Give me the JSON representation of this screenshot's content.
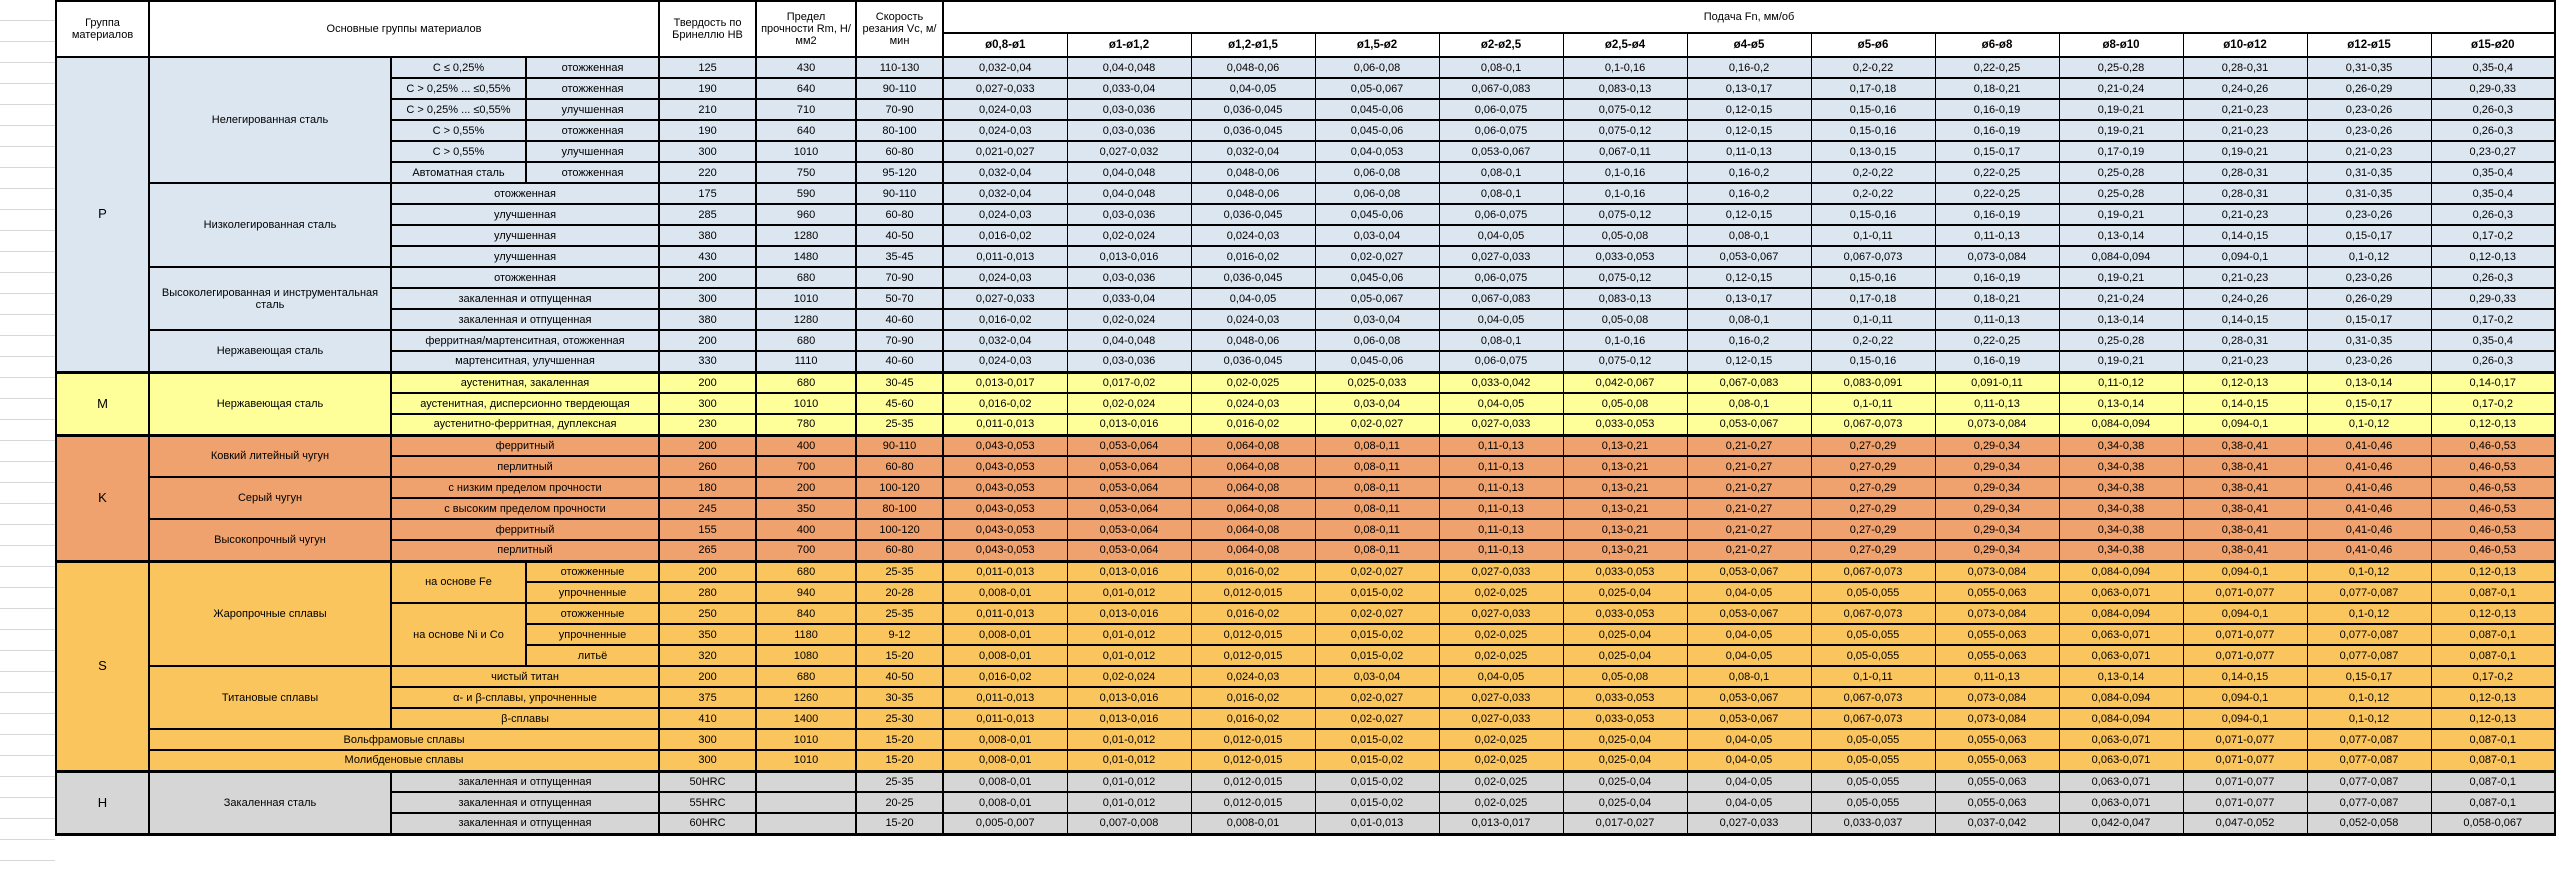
{
  "header": {
    "col_group": "Группа материалов",
    "col_main": "Основные группы материалов",
    "col_hardness": "Твердость по Бринеллю HB",
    "col_strength": "Предел прочности Rm, Н/мм2",
    "col_speed": "Скорость резания Vc, м/мин",
    "col_feed": "Подача Fn, мм/об",
    "diameters": [
      "ø0,8-ø1",
      "ø1-ø1,2",
      "ø1,2-ø1,5",
      "ø1,5-ø2",
      "ø2-ø2,5",
      "ø2,5-ø4",
      "ø4-ø5",
      "ø5-ø6",
      "ø6-ø8",
      "ø8-ø10",
      "ø10-ø12",
      "ø12-ø15",
      "ø15-ø20"
    ]
  },
  "colors": {
    "group_P": "#DCE6F1",
    "group_M": "#FFFF99",
    "group_K": "#F0A26E",
    "group_S": "#FBC55D",
    "group_H": "#D6D6D6",
    "grid": "#000000",
    "gutter_line": "#d8d8d8"
  },
  "feed_types": {
    "A": [
      "0,032-0,04",
      "0,04-0,048",
      "0,048-0,06",
      "0,06-0,08",
      "0,08-0,1",
      "0,1-0,16",
      "0,16-0,2",
      "0,2-0,22",
      "0,22-0,25",
      "0,25-0,28",
      "0,28-0,31",
      "0,31-0,35",
      "0,35-0,4"
    ],
    "B": [
      "0,027-0,033",
      "0,033-0,04",
      "0,04-0,05",
      "0,05-0,067",
      "0,067-0,083",
      "0,083-0,13",
      "0,13-0,17",
      "0,17-0,18",
      "0,18-0,21",
      "0,21-0,24",
      "0,24-0,26",
      "0,26-0,29",
      "0,29-0,33"
    ],
    "C": [
      "0,024-0,03",
      "0,03-0,036",
      "0,036-0,045",
      "0,045-0,06",
      "0,06-0,075",
      "0,075-0,12",
      "0,12-0,15",
      "0,15-0,16",
      "0,16-0,19",
      "0,19-0,21",
      "0,21-0,23",
      "0,23-0,26",
      "0,26-0,3"
    ],
    "D": [
      "0,016-0,02",
      "0,02-0,024",
      "0,024-0,03",
      "0,03-0,04",
      "0,04-0,05",
      "0,05-0,08",
      "0,08-0,1",
      "0,1-0,11",
      "0,11-0,13",
      "0,13-0,14",
      "0,14-0,15",
      "0,15-0,17",
      "0,17-0,2"
    ],
    "E": [
      "0,011-0,013",
      "0,013-0,016",
      "0,016-0,02",
      "0,02-0,027",
      "0,027-0,033",
      "0,033-0,053",
      "0,053-0,067",
      "0,067-0,073",
      "0,073-0,084",
      "0,084-0,094",
      "0,094-0,1",
      "0,1-0,12",
      "0,12-0,13"
    ],
    "F": [
      "0,021-0,027",
      "0,027-0,032",
      "0,032-0,04",
      "0,04-0,053",
      "0,053-0,067",
      "0,067-0,11",
      "0,11-0,13",
      "0,13-0,15",
      "0,15-0,17",
      "0,17-0,19",
      "0,19-0,21",
      "0,21-0,23",
      "0,23-0,27"
    ],
    "M1": [
      "0,013-0,017",
      "0,017-0,02",
      "0,02-0,025",
      "0,025-0,033",
      "0,033-0,042",
      "0,042-0,067",
      "0,067-0,083",
      "0,083-0,091",
      "0,091-0,11",
      "0,11-0,12",
      "0,12-0,13",
      "0,13-0,14",
      "0,14-0,17"
    ],
    "K1": [
      "0,043-0,053",
      "0,053-0,064",
      "0,064-0,08",
      "0,08-0,11",
      "0,11-0,13",
      "0,13-0,21",
      "0,21-0,27",
      "0,27-0,29",
      "0,29-0,34",
      "0,34-0,38",
      "0,38-0,41",
      "0,41-0,46",
      "0,46-0,53"
    ],
    "S1": [
      "0,008-0,01",
      "0,01-0,012",
      "0,012-0,015",
      "0,015-0,02",
      "0,02-0,025",
      "0,025-0,04",
      "0,04-0,05",
      "0,05-0,055",
      "0,055-0,063",
      "0,063-0,071",
      "0,071-0,077",
      "0,077-0,087",
      "0,087-0,1"
    ],
    "H60": [
      "0,005-0,007",
      "0,007-0,008",
      "0,008-0,01",
      "0,01-0,013",
      "0,013-0,017",
      "0,017-0,027",
      "0,027-0,033",
      "0,033-0,037",
      "0,037-0,042",
      "0,042-0,047",
      "0,047-0,052",
      "0,052-0,058",
      "0,058-0,067"
    ]
  },
  "rows": [
    {
      "cls": "c-p",
      "g": [
        "P",
        15
      ],
      "fam": [
        "Нелегированная сталь",
        6
      ],
      "comp": [
        "C ≤ 0,25%",
        1
      ],
      "treat": "отожженная",
      "hb": "125",
      "rm": "430",
      "vc": "110-130",
      "ft": "A"
    },
    {
      "cls": "c-p",
      "comp": [
        "C > 0,25% ... ≤0,55%",
        1
      ],
      "treat": "отожженная",
      "hb": "190",
      "rm": "640",
      "vc": "90-110",
      "ft": "B"
    },
    {
      "cls": "c-p",
      "comp": [
        "C > 0,25% ... ≤0,55%",
        1
      ],
      "treat": "улучшенная",
      "hb": "210",
      "rm": "710",
      "vc": "70-90",
      "ft": "C"
    },
    {
      "cls": "c-p",
      "comp": [
        "C > 0,55%",
        1
      ],
      "treat": "отожженная",
      "hb": "190",
      "rm": "640",
      "vc": "80-100",
      "ft": "C"
    },
    {
      "cls": "c-p",
      "comp": [
        "C > 0,55%",
        1
      ],
      "treat": "улучшенная",
      "hb": "300",
      "rm": "1010",
      "vc": "60-80",
      "ft": "F"
    },
    {
      "cls": "c-p",
      "comp": [
        "Автоматная сталь",
        1
      ],
      "treat": "отожженная",
      "hb": "220",
      "rm": "750",
      "vc": "95-120",
      "ft": "A"
    },
    {
      "cls": "c-p",
      "fam": [
        "Низколегированная сталь",
        4
      ],
      "ct": "отожженная",
      "hb": "175",
      "rm": "590",
      "vc": "90-110",
      "ft": "A"
    },
    {
      "cls": "c-p",
      "ct": "улучшенная",
      "hb": "285",
      "rm": "960",
      "vc": "60-80",
      "ft": "C"
    },
    {
      "cls": "c-p",
      "ct": "улучшенная",
      "hb": "380",
      "rm": "1280",
      "vc": "40-50",
      "ft": "D"
    },
    {
      "cls": "c-p",
      "ct": "улучшенная",
      "hb": "430",
      "rm": "1480",
      "vc": "35-45",
      "ft": "E"
    },
    {
      "cls": "c-p",
      "fam": [
        "Высоколегированная и инструментальная сталь",
        3
      ],
      "ct": "отожженная",
      "hb": "200",
      "rm": "680",
      "vc": "70-90",
      "ft": "C"
    },
    {
      "cls": "c-p",
      "ct": "закаленная и отпущенная",
      "hb": "300",
      "rm": "1010",
      "vc": "50-70",
      "ft": "B"
    },
    {
      "cls": "c-p",
      "ct": "закаленная и отпущенная",
      "hb": "380",
      "rm": "1280",
      "vc": "40-60",
      "ft": "D"
    },
    {
      "cls": "c-p",
      "fam": [
        "Нержавеющая сталь",
        2
      ],
      "famB3": true,
      "ct": "ферритная/мартенситная, отожженная",
      "hb": "200",
      "rm": "680",
      "vc": "70-90",
      "ft": "A"
    },
    {
      "cls": "c-p",
      "gb": true,
      "ct": "мартенситная, улучшенная",
      "hb": "330",
      "rm": "1110",
      "vc": "40-60",
      "ft": "C"
    },
    {
      "cls": "c-m",
      "g": [
        "M",
        3
      ],
      "fam": [
        "Нержавеющая сталь",
        3
      ],
      "famB3": true,
      "ct": "аустенитная, закаленная",
      "hb": "200",
      "rm": "680",
      "vc": "30-45",
      "ft": "M1"
    },
    {
      "cls": "c-m",
      "ct": "аустенитная, дисперсионно твердеющая",
      "hb": "300",
      "rm": "1010",
      "vc": "45-60",
      "ft": "D"
    },
    {
      "cls": "c-m",
      "gb": true,
      "ct": "аустенитно-ферритная, дуплексная",
      "hb": "230",
      "rm": "780",
      "vc": "25-35",
      "ft": "E"
    },
    {
      "cls": "c-k",
      "g": [
        "K",
        6
      ],
      "fam": [
        "Ковкий литейный чугун",
        2
      ],
      "ct": "ферритный",
      "hb": "200",
      "rm": "400",
      "vc": "90-110",
      "ft": "K1"
    },
    {
      "cls": "c-k",
      "ct": "перлитный",
      "hb": "260",
      "rm": "700",
      "vc": "60-80",
      "ft": "K1"
    },
    {
      "cls": "c-k",
      "fam": [
        "Серый чугун",
        2
      ],
      "ct": "с низким пределом прочности",
      "hb": "180",
      "rm": "200",
      "vc": "100-120",
      "ft": "K1"
    },
    {
      "cls": "c-k",
      "ct": "с высоким пределом прочности",
      "hb": "245",
      "rm": "350",
      "vc": "80-100",
      "ft": "K1"
    },
    {
      "cls": "c-k",
      "fam": [
        "Высокопрочный чугун",
        2
      ],
      "famB3": true,
      "ct": "ферритный",
      "hb": "155",
      "rm": "400",
      "vc": "100-120",
      "ft": "K1"
    },
    {
      "cls": "c-k",
      "gb": true,
      "ct": "перлитный",
      "hb": "265",
      "rm": "700",
      "vc": "60-80",
      "ft": "K1"
    },
    {
      "cls": "c-s",
      "g": [
        "S",
        10
      ],
      "fam": [
        "Жаропрочные сплавы",
        5
      ],
      "comp": [
        "на основе Fe",
        2
      ],
      "treat": "отожженные",
      "hb": "200",
      "rm": "680",
      "vc": "25-35",
      "ft": "E"
    },
    {
      "cls": "c-s",
      "treat": "упрочненные",
      "hb": "280",
      "rm": "940",
      "vc": "20-28",
      "ft": "S1"
    },
    {
      "cls": "c-s",
      "comp": [
        "на основе Ni и Co",
        3
      ],
      "treat": "отожженные",
      "hb": "250",
      "rm": "840",
      "vc": "25-35",
      "ft": "E"
    },
    {
      "cls": "c-s",
      "treat": "упрочненные",
      "hb": "350",
      "rm": "1180",
      "vc": "9-12",
      "ft": "S1"
    },
    {
      "cls": "c-s",
      "treat": "литьё",
      "hb": "320",
      "rm": "1080",
      "vc": "15-20",
      "ft": "S1"
    },
    {
      "cls": "c-s",
      "fam": [
        "Титановые сплавы",
        3
      ],
      "ct": "чистый титан",
      "hb": "200",
      "rm": "680",
      "vc": "40-50",
      "ft": "D"
    },
    {
      "cls": "c-s",
      "ct": "α- и β-сплавы, упрочненные",
      "hb": "375",
      "rm": "1260",
      "vc": "30-35",
      "ft": "E"
    },
    {
      "cls": "c-s",
      "ct": "β-сплавы",
      "hb": "410",
      "rm": "1400",
      "vc": "25-30",
      "ft": "E"
    },
    {
      "cls": "c-s",
      "all3": "Вольфрамовые сплавы",
      "hb": "300",
      "rm": "1010",
      "vc": "15-20",
      "ft": "S1"
    },
    {
      "cls": "c-s",
      "gb": true,
      "all3": "Молибденовые сплавы",
      "hb": "300",
      "rm": "1010",
      "vc": "15-20",
      "ft": "S1"
    },
    {
      "cls": "c-h",
      "g": [
        "H",
        3
      ],
      "fam": [
        "Закаленная сталь",
        3
      ],
      "famB3": true,
      "ct": "закаленная и отпущенная",
      "hb": "50HRC",
      "rm": "",
      "vc": "25-35",
      "ft": "S1"
    },
    {
      "cls": "c-h",
      "ct": "закаленная и отпущенная",
      "hb": "55HRC",
      "rm": "",
      "vc": "20-25",
      "ft": "S1"
    },
    {
      "cls": "c-h",
      "gb": true,
      "ct": "закаленная и отпущенная",
      "hb": "60HRC",
      "rm": "",
      "vc": "15-20",
      "ft": "H60"
    }
  ]
}
